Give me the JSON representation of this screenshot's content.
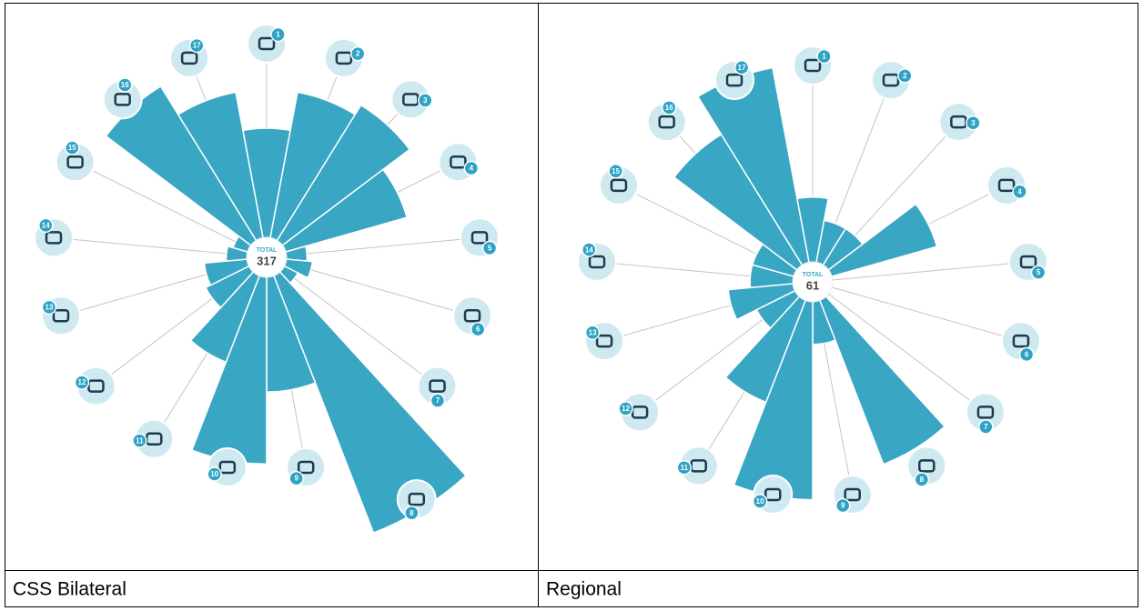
{
  "chart_data": [
    {
      "type": "polar_bar",
      "caption": "CSS Bilateral",
      "total_label": "TOTAL",
      "total": 317,
      "categories": [
        "1",
        "2",
        "3",
        "4",
        "5",
        "6",
        "7",
        "8",
        "9",
        "10",
        "11",
        "12",
        "13",
        "14",
        "15",
        "16",
        "17"
      ],
      "values": [
        20,
        27,
        29,
        23,
        4,
        5,
        3,
        50,
        21,
        34,
        17,
        9,
        8,
        4,
        3,
        33,
        27
      ],
      "color": "#39a6c4"
    },
    {
      "type": "polar_bar",
      "caption": "Regional",
      "total_label": "TOTAL",
      "total": 61,
      "categories": [
        "1",
        "2",
        "3",
        "4",
        "5",
        "6",
        "7",
        "8",
        "9",
        "10",
        "11",
        "12",
        "13",
        "14",
        "15",
        "16",
        "17"
      ],
      "values": [
        3,
        2,
        2,
        5,
        0,
        0,
        0,
        8,
        2,
        9,
        5,
        2,
        3,
        2,
        2,
        7,
        9
      ],
      "color": "#39a6c4"
    }
  ]
}
